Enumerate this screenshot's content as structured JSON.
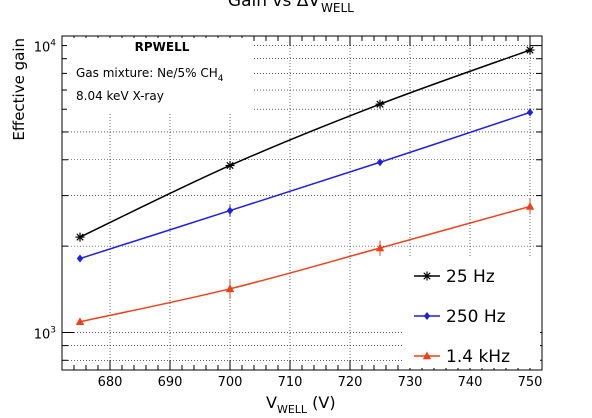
{
  "chart_data": {
    "type": "line",
    "title": {
      "main": "Gain vs ΔV",
      "sub": "WELL"
    },
    "xlabel": {
      "main": "V",
      "sub": "WELL",
      "unit": " (V)"
    },
    "ylabel": "Effective gain",
    "xlim": [
      672,
      752
    ],
    "ylim": [
      740,
      10800
    ],
    "yscale": "log",
    "grid": true,
    "x_ticks": [
      "680",
      "690",
      "700",
      "710",
      "720",
      "730",
      "740",
      "750"
    ],
    "y_ticks": [
      {
        "base": "10",
        "exp": "3",
        "value": 1000
      },
      {
        "base": "10",
        "exp": "4",
        "value": 10000
      }
    ],
    "annotation": {
      "title": "RPWELL",
      "line1": "Gas mixture: Ne/5% CH",
      "line1_sub": "4",
      "line2": "8.04 keV X-ray"
    },
    "legend_position": "bottom-right",
    "series": [
      {
        "name": "25 Hz",
        "color": "#000000",
        "marker": "star",
        "x": [
          675,
          700,
          725,
          750
        ],
        "values": [
          2150,
          3820,
          6250,
          9650
        ],
        "errors": [
          40,
          70,
          110,
          160
        ]
      },
      {
        "name": "250 Hz",
        "color": "#1f1fe6",
        "marker": "diamond",
        "x": [
          675,
          700,
          725,
          750
        ],
        "values": [
          1810,
          2660,
          3920,
          5850
        ],
        "errors": [
          30,
          120,
          80,
          110
        ]
      },
      {
        "name": "1.4 kHz",
        "color": "#f0401a",
        "marker": "triangle",
        "x": [
          675,
          700,
          725,
          750
        ],
        "values": [
          1090,
          1420,
          1970,
          2750
        ],
        "errors": [
          20,
          110,
          120,
          170
        ]
      }
    ]
  }
}
